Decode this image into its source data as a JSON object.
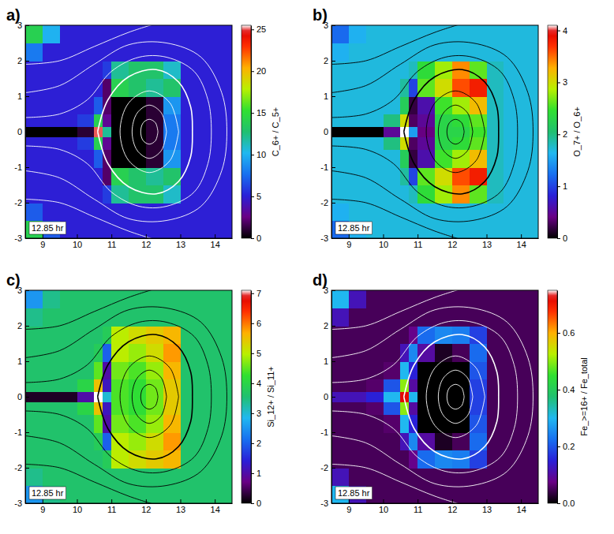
{
  "chart_data": [
    {
      "type": "heatmap",
      "panel": "a)",
      "annotation": "12.85 hr",
      "colorbar_label": "C_6+ / C_5+",
      "xlim": [
        8.5,
        14.5
      ],
      "ylim": [
        -3,
        3
      ],
      "xticks": [
        9,
        10,
        11,
        12,
        13,
        14
      ],
      "yticks": [
        -3,
        -2,
        -1,
        0,
        1,
        2,
        3
      ],
      "x_edges": [
        8.5,
        9,
        9.5,
        10,
        10.5,
        10.75,
        11,
        11.5,
        12,
        12.5,
        13,
        13.5,
        14,
        14.5
      ],
      "y_edges": [
        -3,
        -2.5,
        -2,
        -1.5,
        -1,
        -0.5,
        -0.15,
        0.15,
        0.5,
        1,
        1.5,
        2,
        2.5,
        3
      ],
      "cells": [
        [
          14,
          7,
          5,
          5,
          5,
          5,
          5,
          5,
          5,
          5,
          5,
          5,
          5
        ],
        [
          7,
          5,
          5,
          5,
          5,
          5,
          5,
          5,
          5,
          5,
          5,
          5,
          5
        ],
        [
          5,
          5,
          5,
          5,
          5,
          6,
          12,
          13,
          13,
          11,
          5,
          5,
          5
        ],
        [
          5,
          5,
          5,
          5,
          5,
          2,
          14,
          13,
          12,
          13,
          5,
          5,
          5
        ],
        [
          5,
          5,
          5,
          5,
          7,
          2,
          0,
          0,
          1,
          9,
          5,
          5,
          5
        ],
        [
          5,
          5,
          5,
          6,
          14,
          3,
          0,
          0,
          1,
          8,
          5,
          5,
          5
        ],
        [
          0,
          0,
          0,
          1,
          25,
          12,
          0,
          0,
          1,
          8,
          5,
          5,
          5
        ],
        [
          5,
          5,
          5,
          6,
          14,
          3,
          0,
          0,
          1,
          8,
          5,
          5,
          5
        ],
        [
          5,
          5,
          5,
          5,
          7,
          2,
          0,
          0,
          1,
          9,
          5,
          5,
          5
        ],
        [
          5,
          5,
          5,
          5,
          5,
          2,
          14,
          13,
          12,
          13,
          5,
          5,
          5
        ],
        [
          5,
          5,
          5,
          5,
          5,
          6,
          12,
          13,
          13,
          11,
          5,
          5,
          5
        ],
        [
          8,
          5,
          5,
          5,
          5,
          5,
          5,
          5,
          5,
          5,
          5,
          5,
          5
        ],
        [
          14,
          10,
          5,
          5,
          5,
          5,
          5,
          5,
          5,
          5,
          5,
          5,
          5
        ]
      ],
      "colorbar_range": [
        0,
        25.5
      ],
      "colorbar_ticks": [
        0,
        5,
        10,
        15,
        20,
        25
      ]
    },
    {
      "type": "heatmap",
      "panel": "b)",
      "annotation": "12.85 hr",
      "colorbar_label": "O_7+ / O_6+",
      "xlim": [
        8.5,
        14.5
      ],
      "ylim": [
        -3,
        3
      ],
      "xticks": [
        9,
        10,
        11,
        12,
        13,
        14
      ],
      "yticks": [
        -3,
        -2,
        -1,
        0,
        1,
        2,
        3
      ],
      "x_edges": [
        8.5,
        9,
        9.5,
        10,
        10.5,
        10.75,
        11,
        11.5,
        12,
        12.5,
        13,
        13.5,
        14,
        14.5
      ],
      "y_edges": [
        -3,
        -2.5,
        -2,
        -1.5,
        -1,
        -0.5,
        -0.15,
        0.15,
        0.5,
        1,
        1.5,
        2,
        2.5,
        3
      ],
      "cells": [
        [
          1.2,
          1.6,
          1.7,
          1.7,
          1.7,
          1.7,
          1.7,
          1.7,
          1.7,
          1.7,
          1.7,
          1.7,
          1.7
        ],
        [
          1.6,
          1.7,
          1.7,
          1.7,
          1.7,
          1.7,
          1.7,
          1.7,
          1.7,
          1.7,
          1.7,
          1.7,
          1.7
        ],
        [
          1.7,
          1.7,
          1.7,
          1.7,
          1.7,
          1.8,
          2.4,
          2.8,
          3.4,
          2.6,
          1.8,
          1.7,
          1.7
        ],
        [
          1.7,
          1.7,
          1.7,
          1.7,
          1.9,
          1,
          2.6,
          3,
          3.6,
          3.8,
          1.8,
          1.7,
          1.7
        ],
        [
          1.7,
          1.7,
          1.7,
          1.7,
          2.2,
          0.2,
          0.6,
          2.5,
          2.8,
          3.2,
          1.8,
          1.7,
          1.7
        ],
        [
          1.7,
          1.7,
          1.7,
          2,
          3,
          0.3,
          0.5,
          2.3,
          2.4,
          2.6,
          1.8,
          1.7,
          1.7
        ],
        [
          0,
          0,
          0,
          0.5,
          4.1,
          1.5,
          0.4,
          2.3,
          2.3,
          2.5,
          1.8,
          1.7,
          1.7
        ],
        [
          1.7,
          1.7,
          1.7,
          2,
          3,
          0.3,
          0.5,
          2.3,
          2.4,
          2.6,
          1.8,
          1.7,
          1.7
        ],
        [
          1.7,
          1.7,
          1.7,
          1.7,
          2.2,
          0.2,
          0.6,
          2.5,
          2.8,
          3.2,
          1.8,
          1.7,
          1.7
        ],
        [
          1.7,
          1.7,
          1.7,
          1.7,
          1.9,
          1,
          2.6,
          3,
          3.6,
          3.8,
          1.8,
          1.7,
          1.7
        ],
        [
          1.7,
          1.7,
          1.7,
          1.7,
          1.7,
          1.8,
          2.4,
          2.8,
          3.4,
          2.6,
          1.8,
          1.7,
          1.7
        ],
        [
          1.6,
          1.7,
          1.7,
          1.7,
          1.7,
          1.7,
          1.7,
          1.7,
          1.7,
          1.7,
          1.7,
          1.7,
          1.7
        ],
        [
          1.2,
          1.6,
          1.7,
          1.7,
          1.7,
          1.7,
          1.7,
          1.7,
          1.7,
          1.7,
          1.7,
          1.7,
          1.7
        ]
      ],
      "colorbar_range": [
        0,
        4.1
      ],
      "colorbar_ticks": [
        0,
        1,
        2,
        3,
        4
      ]
    },
    {
      "type": "heatmap",
      "panel": "c)",
      "annotation": "12.85 hr",
      "colorbar_label": "Si_12+ / Si_11+",
      "xlim": [
        8.5,
        14.5
      ],
      "ylim": [
        -3,
        3
      ],
      "xticks": [
        9,
        10,
        11,
        12,
        13,
        14
      ],
      "yticks": [
        -3,
        -2,
        -1,
        0,
        1,
        2,
        3
      ],
      "x_edges": [
        8.5,
        9,
        9.5,
        10,
        10.5,
        10.75,
        11,
        11.5,
        12,
        12.5,
        13,
        13.5,
        14,
        14.5
      ],
      "y_edges": [
        -3,
        -2.5,
        -2,
        -1.5,
        -1,
        -0.5,
        -0.15,
        0.15,
        0.5,
        1,
        1.5,
        2,
        2.5,
        3
      ],
      "cells": [
        [
          2.5,
          3.4,
          3.6,
          3.6,
          3.6,
          3.6,
          3.6,
          3.6,
          3.6,
          3.6,
          3.6,
          3.6,
          3.6
        ],
        [
          3.4,
          3.6,
          3.6,
          3.6,
          3.6,
          3.6,
          3.6,
          3.6,
          3.6,
          3.6,
          3.6,
          3.6,
          3.6
        ],
        [
          3.6,
          3.6,
          3.6,
          3.6,
          3.6,
          3.8,
          5,
          5.2,
          5.4,
          5.6,
          3.6,
          3.6,
          3.6
        ],
        [
          3.6,
          3.6,
          3.6,
          3.6,
          3.8,
          2,
          5,
          4.8,
          5.2,
          5.8,
          3.6,
          3.6,
          3.6
        ],
        [
          3.6,
          3.6,
          3.6,
          3.6,
          4.5,
          1,
          4.6,
          4.4,
          4.8,
          5.6,
          3.6,
          3.6,
          3.6
        ],
        [
          3.6,
          3.6,
          3.6,
          4,
          5.5,
          1.2,
          4.4,
          4.2,
          4.6,
          5.4,
          3.6,
          3.6,
          3.6
        ],
        [
          0.2,
          0.2,
          0.2,
          1,
          7.1,
          3,
          4.4,
          4.2,
          4.6,
          5.4,
          3.6,
          3.6,
          3.6
        ],
        [
          3.6,
          3.6,
          3.6,
          4,
          5.5,
          1.2,
          4.4,
          4.2,
          4.6,
          5.4,
          3.6,
          3.6,
          3.6
        ],
        [
          3.6,
          3.6,
          3.6,
          3.6,
          4.5,
          1,
          4.6,
          4.4,
          4.8,
          5.6,
          3.6,
          3.6,
          3.6
        ],
        [
          3.6,
          3.6,
          3.6,
          3.6,
          3.8,
          2,
          5,
          4.8,
          5.2,
          5.8,
          3.6,
          3.6,
          3.6
        ],
        [
          3.6,
          3.6,
          3.6,
          3.6,
          3.6,
          3.8,
          5,
          5.2,
          5.4,
          5.6,
          3.6,
          3.6,
          3.6
        ],
        [
          3.4,
          3.6,
          3.6,
          3.6,
          3.6,
          3.6,
          3.6,
          3.6,
          3.6,
          3.6,
          3.6,
          3.6,
          3.6
        ],
        [
          2.5,
          3.4,
          3.6,
          3.6,
          3.6,
          3.6,
          3.6,
          3.6,
          3.6,
          3.6,
          3.6,
          3.6,
          3.6
        ]
      ],
      "colorbar_range": [
        0,
        7.1
      ],
      "colorbar_ticks": [
        0,
        1,
        2,
        3,
        4,
        5,
        6,
        7
      ]
    },
    {
      "type": "heatmap",
      "panel": "d)",
      "annotation": "12.85 hr",
      "colorbar_label": "Fe_>=16+ / Fe_total",
      "xlim": [
        8.5,
        14.5
      ],
      "ylim": [
        -3,
        3
      ],
      "xticks": [
        9,
        10,
        11,
        12,
        13,
        14
      ],
      "yticks": [
        -3,
        -2,
        -1,
        0,
        1,
        2,
        3
      ],
      "x_edges": [
        8.5,
        9,
        9.5,
        10,
        10.5,
        10.75,
        11,
        11.5,
        12,
        12.5,
        13,
        13.5,
        14,
        14.5
      ],
      "y_edges": [
        -3,
        -2.5,
        -2,
        -1.5,
        -1,
        -0.5,
        -0.15,
        0.15,
        0.5,
        1,
        1.5,
        2,
        2.5,
        3
      ],
      "cells": [
        [
          0.3,
          0.12,
          0.05,
          0.05,
          0.05,
          0.05,
          0.05,
          0.05,
          0.05,
          0.05,
          0.05,
          0.05,
          0.05
        ],
        [
          0.12,
          0.05,
          0.05,
          0.05,
          0.05,
          0.05,
          0.05,
          0.05,
          0.05,
          0.05,
          0.05,
          0.05,
          0.05
        ],
        [
          0.05,
          0.05,
          0.05,
          0.05,
          0.05,
          0.08,
          0.22,
          0.25,
          0.24,
          0.18,
          0.05,
          0.05,
          0.05
        ],
        [
          0.05,
          0.05,
          0.05,
          0.05,
          0.12,
          0.25,
          0.1,
          0.02,
          0.05,
          0.22,
          0.05,
          0.05,
          0.05
        ],
        [
          0.05,
          0.05,
          0.05,
          0.06,
          0.3,
          0.15,
          0,
          0,
          0,
          0.2,
          0.05,
          0.05,
          0.05
        ],
        [
          0.05,
          0.05,
          0.06,
          0.2,
          0.5,
          0.1,
          0,
          0,
          0,
          0.18,
          0.05,
          0.05,
          0.05
        ],
        [
          0.12,
          0.12,
          0.15,
          0.3,
          0.72,
          0.3,
          0,
          0,
          0,
          0.18,
          0.05,
          0.05,
          0.05
        ],
        [
          0.05,
          0.05,
          0.06,
          0.2,
          0.5,
          0.1,
          0,
          0,
          0,
          0.18,
          0.05,
          0.05,
          0.05
        ],
        [
          0.05,
          0.05,
          0.05,
          0.06,
          0.3,
          0.15,
          0,
          0,
          0,
          0.2,
          0.05,
          0.05,
          0.05
        ],
        [
          0.05,
          0.05,
          0.05,
          0.05,
          0.12,
          0.25,
          0.1,
          0.02,
          0.05,
          0.22,
          0.05,
          0.05,
          0.05
        ],
        [
          0.05,
          0.05,
          0.05,
          0.05,
          0.05,
          0.08,
          0.22,
          0.25,
          0.24,
          0.18,
          0.05,
          0.05,
          0.05
        ],
        [
          0.12,
          0.05,
          0.05,
          0.05,
          0.05,
          0.05,
          0.05,
          0.05,
          0.05,
          0.05,
          0.05,
          0.05,
          0.05
        ],
        [
          0.3,
          0.12,
          0.05,
          0.05,
          0.05,
          0.05,
          0.05,
          0.05,
          0.05,
          0.05,
          0.05,
          0.05,
          0.05
        ]
      ],
      "colorbar_range": [
        0,
        0.75
      ],
      "colorbar_ticks": [
        {
          "value": 0,
          "label": "0.0"
        },
        {
          "value": 0.2,
          "label": "0.2"
        },
        {
          "value": 0.4,
          "label": "0.4"
        },
        {
          "value": 0.6,
          "label": "0.6"
        }
      ]
    }
  ],
  "field_lines": [
    {
      "x": [
        12.35,
        12.28,
        12.1,
        11.92,
        11.85,
        11.92,
        12.1,
        12.28,
        12.35
      ],
      "y": [
        0,
        0.25,
        0.35,
        0.25,
        0,
        -0.25,
        -0.35,
        -0.25,
        0
      ]
    },
    {
      "x": [
        12.6,
        12.45,
        12.1,
        11.75,
        11.6,
        11.75,
        12.1,
        12.45,
        12.6
      ],
      "y": [
        0,
        0.53,
        0.75,
        0.53,
        0,
        -0.53,
        -0.75,
        -0.53,
        0
      ]
    },
    {
      "x": [
        12.95,
        12.7,
        12.1,
        11.5,
        11.25,
        11.5,
        12.1,
        12.7,
        12.95
      ],
      "y": [
        0,
        0.81,
        1.15,
        0.81,
        0,
        -0.81,
        -1.15,
        -0.81,
        0
      ]
    },
    {
      "x": [
        10.6,
        10.9,
        11.5,
        12.3,
        12.95,
        13.3,
        13.35,
        13.3,
        12.95,
        12.3,
        11.5,
        10.9,
        10.6
      ],
      "y": [
        0,
        0.9,
        1.55,
        1.75,
        1.4,
        0.7,
        0,
        -0.7,
        -1.4,
        -1.75,
        -1.55,
        -0.9,
        0
      ]
    },
    {
      "x": [
        8.5,
        9.5,
        10.3,
        11,
        11.8,
        12.6,
        13.4,
        13.8,
        13.9,
        13.8,
        13.4,
        12.6,
        11.8,
        11,
        10.3,
        9.5,
        8.5
      ],
      "y": [
        0.4,
        0.5,
        0.9,
        1.7,
        2.1,
        2.1,
        1.7,
        0.9,
        0,
        -0.9,
        -1.7,
        -2.1,
        -2.1,
        -1.7,
        -0.9,
        -0.5,
        -0.4
      ]
    },
    {
      "x": [
        8.5,
        9.5,
        10.5,
        11.5,
        12.6,
        13.6,
        14.2,
        14.35,
        14.2,
        13.6,
        12.6,
        11.5,
        10.5,
        9.5,
        8.5
      ],
      "y": [
        1.1,
        1.3,
        1.9,
        2.45,
        2.5,
        2.1,
        1.1,
        0,
        -1.1,
        -2.1,
        -2.5,
        -2.45,
        -1.9,
        -1.3,
        -1.1
      ]
    },
    {
      "x": [
        8.5,
        9.5,
        10.5,
        11.5,
        12.3
      ],
      "y": [
        1.9,
        2,
        2.4,
        2.8,
        3.05
      ]
    },
    {
      "x": [
        8.5,
        9.5,
        10.5,
        11.5,
        12.3
      ],
      "y": [
        -1.9,
        -2,
        -2.4,
        -2.8,
        -3.05
      ]
    }
  ]
}
